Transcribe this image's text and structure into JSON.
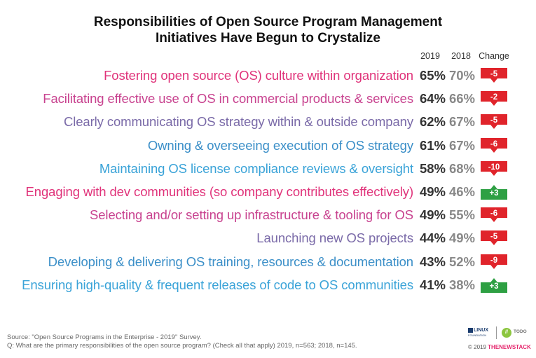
{
  "title_line1": "Responsibilities of Open Source Program Management",
  "title_line2": "Initiatives Have Begun to Crystalize",
  "columns": {
    "y2019": "2019",
    "y2018": "2018",
    "change": "Change"
  },
  "chart_data": {
    "type": "table",
    "title": "Responsibilities of Open Source Program Management Initiatives Have Begun to Crystalize",
    "columns": [
      "2019",
      "2018",
      "Change"
    ],
    "rows": [
      {
        "label": "Fostering open source (OS) culture within organization",
        "v2019": "65%",
        "v2018": "70%",
        "change": "-5",
        "color": "#e0337a"
      },
      {
        "label": "Facilitating effective use of OS in commercial products & services",
        "v2019": "64%",
        "v2018": "66%",
        "change": "-2",
        "color": "#c8428f"
      },
      {
        "label": "Clearly communicating OS strategy within & outside company",
        "v2019": "62%",
        "v2018": "67%",
        "change": "-5",
        "color": "#7a6aa8"
      },
      {
        "label": "Owning & overseeing execution of OS strategy",
        "v2019": "61%",
        "v2018": "67%",
        "change": "-6",
        "color": "#3b8fc8"
      },
      {
        "label": "Maintaining OS license compliance reviews & oversight",
        "v2019": "58%",
        "v2018": "68%",
        "change": "-10",
        "color": "#3aa3d8"
      },
      {
        "label": "Engaging with dev communities (so company contributes effectively)",
        "v2019": "49%",
        "v2018": "46%",
        "change": "+3",
        "color": "#e0337a"
      },
      {
        "label": "Selecting and/or setting up infrastructure & tooling for OS",
        "v2019": "49%",
        "v2018": "55%",
        "change": "-6",
        "color": "#c8428f"
      },
      {
        "label": "Launching new OS projects",
        "v2019": "44%",
        "v2018": "49%",
        "change": "-5",
        "color": "#7a6aa8"
      },
      {
        "label": "Developing & delivering OS training, resources & documentation",
        "v2019": "43%",
        "v2018": "52%",
        "change": "-9",
        "color": "#3b8fc8"
      },
      {
        "label": "Ensuring high-quality & frequent releases of code to OS communities",
        "v2019": "41%",
        "v2018": "38%",
        "change": "+3",
        "color": "#3aa3d8"
      }
    ],
    "negative_color": "#e0242b",
    "positive_color": "#2ea043"
  },
  "footer": {
    "source": "Source: \"Open Source Programs in the Enterprise - 2019\" Survey.",
    "question": "Q: What are the primary responsibilities of the open source program? (Check all that apply) 2019, n=563; 2018, n=145."
  },
  "logos": {
    "linux_top": "LINUX",
    "linux_bottom": "FOUNDATION",
    "todo_mark": "//",
    "todo": "TODO",
    "copyright": "© 2019",
    "brand": "THENEWSTACK"
  }
}
